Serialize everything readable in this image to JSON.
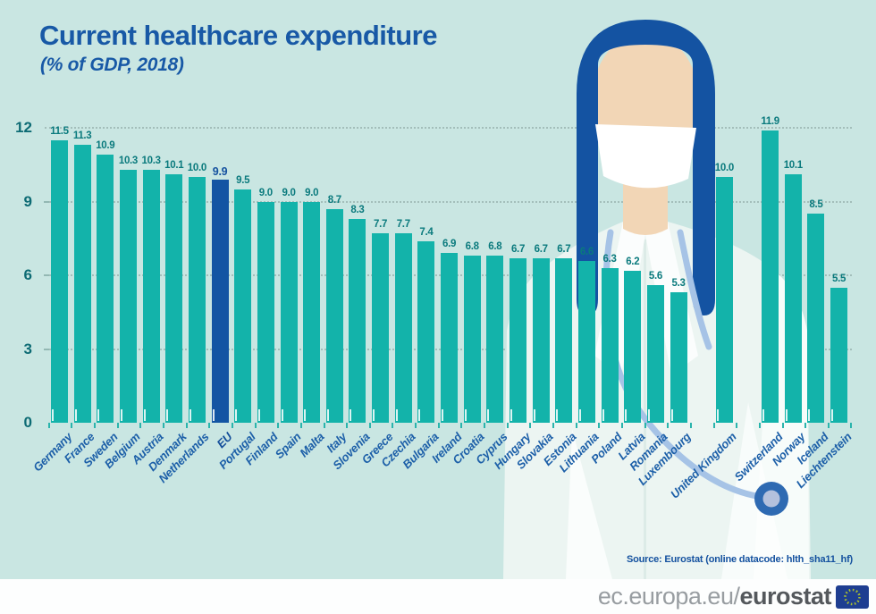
{
  "title": "Current healthcare expenditure",
  "subtitle": "(% of GDP, 2018)",
  "source_note": "Source:  Eurostat (online datacode: hlth_sha11_hf)",
  "footer": {
    "url_regular": "ec.europa.eu/",
    "url_bold": "eurostat",
    "logo_icon": "eu-flag-icon"
  },
  "illustration": "doctor-with-face-mask-and-stethoscope",
  "colors": {
    "background": "#c9e6e2",
    "bar": "#13b3aa",
    "bar_highlight": "#1355a3",
    "value_label": "#0a7a7d",
    "value_label_highlight": "#14519f",
    "country_label": "#1c5fa8",
    "country_label_highlight": "#124d99",
    "title_text": "#1859a6",
    "axis_label": "#0d6b74",
    "gridline": "#a3beba",
    "source_text": "#14519f",
    "footer_regular": "#989da1",
    "footer_bold": "#54585c"
  },
  "chart_data": {
    "type": "bar",
    "title": "Current healthcare expenditure",
    "subtitle": "(% of GDP, 2018)",
    "ylabel": "% of GDP",
    "ylim": [
      0,
      12
    ],
    "yticks": [
      0,
      3,
      6,
      9,
      12
    ],
    "grid": "horizontal-dotted",
    "legend": "none",
    "highlight_category": "EU",
    "gap_before": [
      "United Kingdom",
      "Switzerland"
    ],
    "categories": [
      "Germany",
      "France",
      "Sweden",
      "Belgium",
      "Austria",
      "Denmark",
      "Netherlands",
      "EU",
      "Portugal",
      "Finland",
      "Spain",
      "Malta",
      "Italy",
      "Slovenia",
      "Greece",
      "Czechia",
      "Bulgaria",
      "Ireland",
      "Croatia",
      "Cyprus",
      "Hungary",
      "Slovakia",
      "Estonia",
      "Lithuania",
      "Poland",
      "Latvia",
      "Romania",
      "Luxembourg",
      "United Kingdom",
      "Switzerland",
      "Norway",
      "Iceland",
      "Liechtenstein"
    ],
    "values": [
      11.5,
      11.3,
      10.9,
      10.3,
      10.3,
      10.1,
      10.0,
      9.9,
      9.5,
      9.0,
      9.0,
      9.0,
      8.7,
      8.3,
      7.7,
      7.7,
      7.4,
      6.9,
      6.8,
      6.8,
      6.7,
      6.7,
      6.7,
      6.6,
      6.3,
      6.2,
      5.6,
      5.3,
      10.0,
      11.9,
      10.1,
      8.5,
      5.5
    ]
  }
}
